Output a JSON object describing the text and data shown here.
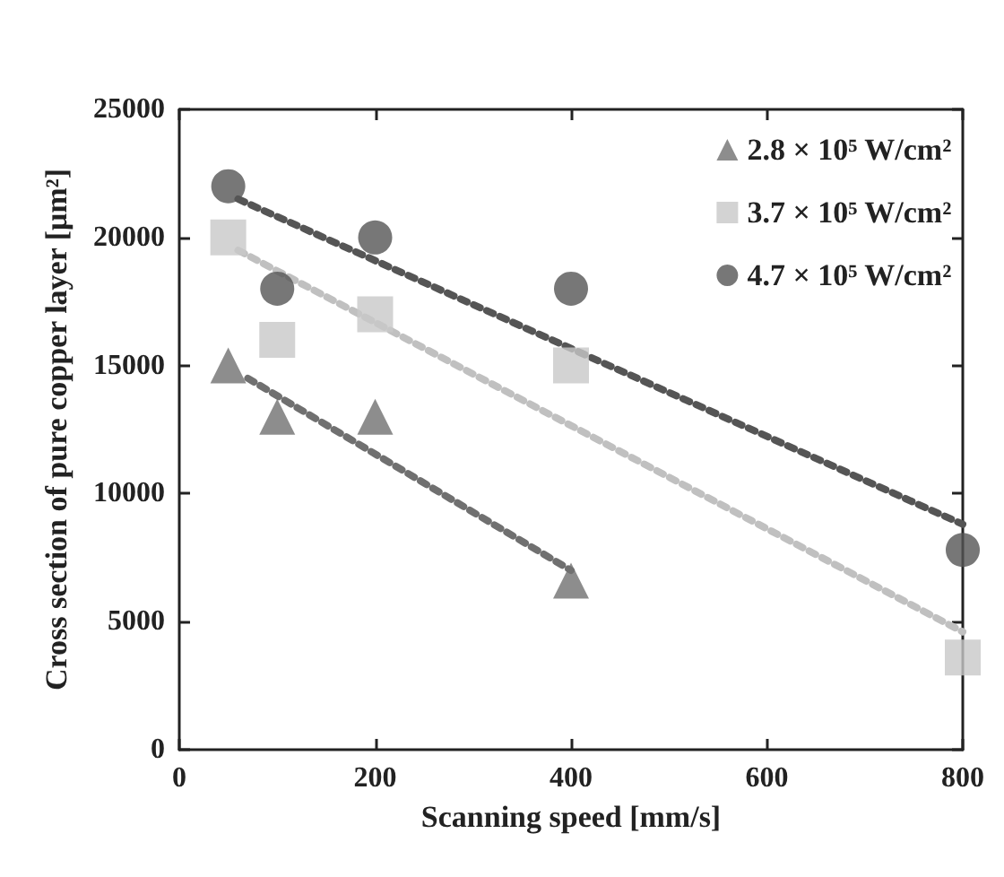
{
  "chart_data": {
    "type": "scatter",
    "xlabel": "Scanning speed [mm/s]",
    "ylabel": "Cross section of pure copper layer [μm²]",
    "xlim": [
      0,
      800
    ],
    "xticks": [
      0,
      200,
      400,
      600,
      800
    ],
    "ylim": [
      0,
      25000
    ],
    "yticks": [
      0,
      5000,
      10000,
      15000,
      20000,
      25000
    ],
    "grid": false,
    "legend": "top right",
    "series": [
      {
        "name": "2.8 × 10⁵ W/cm²",
        "color": "#707070",
        "marker": "triangle",
        "x": [
          50,
          100,
          200,
          400
        ],
        "values": [
          15000,
          13000,
          13000,
          6600
        ]
      },
      {
        "name": "3.7 × 10⁵ W/cm²",
        "color": "#c8c8c8",
        "marker": "square",
        "x": [
          50,
          100,
          200,
          400,
          800
        ],
        "values": [
          20000,
          16000,
          17000,
          15000,
          3600
        ]
      },
      {
        "name": "4.7 × 10⁵ W/cm²",
        "color": "#555555",
        "marker": "circle",
        "x": [
          50,
          100,
          200,
          400,
          800
        ],
        "values": [
          22000,
          18000,
          20000,
          18000,
          7800
        ]
      },
      {
        "type": "line",
        "color": "#707070",
        "marker": "none",
        "line_style": "dotted",
        "x": [
          70,
          400
        ],
        "values": [
          14500,
          7000
        ]
      },
      {
        "type": "line",
        "color": "#c0c0c0",
        "marker": "none",
        "line_style": "dotted",
        "x": [
          60,
          800
        ],
        "values": [
          19500,
          4600
        ]
      },
      {
        "type": "line",
        "color": "#555555",
        "marker": "none",
        "line_style": "dotted",
        "x": [
          60,
          800
        ],
        "values": [
          21500,
          8800
        ]
      }
    ]
  }
}
